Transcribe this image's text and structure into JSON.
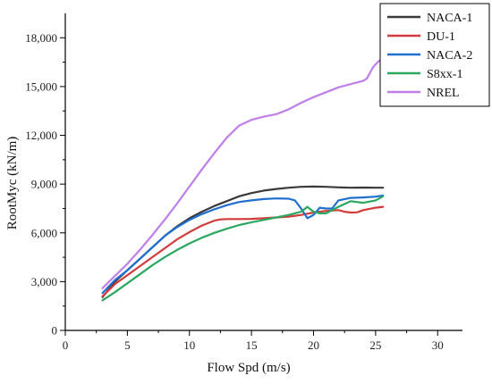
{
  "chart_data": {
    "type": "line",
    "title": "",
    "xlabel": "Flow Spd (m/s)",
    "ylabel": "RootMyc (kN/m)",
    "xlim": [
      0,
      32
    ],
    "ylim": [
      0,
      19500
    ],
    "x_ticks": [
      "0",
      "5",
      "10",
      "15",
      "20",
      "25",
      "30"
    ],
    "y_ticks": [
      "0",
      "3,000",
      "6,000",
      "9,000",
      "12,000",
      "15,000",
      "18,000"
    ],
    "grid": false,
    "legend_position": "top-right",
    "series": [
      {
        "name": "NACA-1",
        "color": "#3a3a3a",
        "points": [
          [
            3,
            2050
          ],
          [
            4,
            3000
          ],
          [
            5,
            3700
          ],
          [
            6,
            4400
          ],
          [
            7,
            5100
          ],
          [
            8,
            5800
          ],
          [
            9,
            6400
          ],
          [
            10,
            6900
          ],
          [
            11,
            7300
          ],
          [
            12,
            7650
          ],
          [
            13,
            7950
          ],
          [
            14,
            8250
          ],
          [
            15,
            8450
          ],
          [
            16,
            8600
          ],
          [
            17,
            8700
          ],
          [
            18,
            8780
          ],
          [
            19,
            8830
          ],
          [
            20,
            8850
          ],
          [
            21,
            8830
          ],
          [
            22,
            8800
          ],
          [
            23,
            8780
          ],
          [
            24,
            8790
          ],
          [
            25,
            8780
          ],
          [
            25.6,
            8780
          ]
        ]
      },
      {
        "name": "DU-1",
        "color": "#d23b3b",
        "points": [
          [
            3,
            2100
          ],
          [
            4,
            2850
          ],
          [
            5,
            3400
          ],
          [
            6,
            3950
          ],
          [
            7,
            4500
          ],
          [
            8,
            5050
          ],
          [
            9,
            5600
          ],
          [
            10,
            6050
          ],
          [
            11,
            6450
          ],
          [
            12,
            6750
          ],
          [
            12.5,
            6830
          ],
          [
            13,
            6850
          ],
          [
            14,
            6850
          ],
          [
            15,
            6860
          ],
          [
            16,
            6900
          ],
          [
            17,
            6950
          ],
          [
            18,
            7000
          ],
          [
            19,
            7100
          ],
          [
            20,
            7250
          ],
          [
            21,
            7350
          ],
          [
            22,
            7400
          ],
          [
            22.5,
            7300
          ],
          [
            23,
            7250
          ],
          [
            23.5,
            7260
          ],
          [
            24,
            7400
          ],
          [
            25,
            7550
          ],
          [
            25.6,
            7600
          ]
        ]
      },
      {
        "name": "NACA-2",
        "color": "#1f6fd1",
        "points": [
          [
            3,
            2300
          ],
          [
            4,
            3100
          ],
          [
            5,
            3700
          ],
          [
            6,
            4400
          ],
          [
            7,
            5100
          ],
          [
            8,
            5800
          ],
          [
            9,
            6350
          ],
          [
            10,
            6800
          ],
          [
            11,
            7150
          ],
          [
            12,
            7450
          ],
          [
            13,
            7700
          ],
          [
            14,
            7900
          ],
          [
            15,
            8000
          ],
          [
            16,
            8080
          ],
          [
            17,
            8120
          ],
          [
            18,
            8100
          ],
          [
            18.5,
            8000
          ],
          [
            19,
            7500
          ],
          [
            19.5,
            6900
          ],
          [
            20,
            7100
          ],
          [
            20.5,
            7550
          ],
          [
            21,
            7500
          ],
          [
            21.5,
            7500
          ],
          [
            22,
            8000
          ],
          [
            23,
            8150
          ],
          [
            24,
            8180
          ],
          [
            25,
            8230
          ],
          [
            25.6,
            8300
          ]
        ]
      },
      {
        "name": "S8xx-1",
        "color": "#2aa860",
        "points": [
          [
            3,
            1850
          ],
          [
            4,
            2350
          ],
          [
            5,
            2900
          ],
          [
            6,
            3450
          ],
          [
            7,
            4000
          ],
          [
            8,
            4500
          ],
          [
            9,
            4950
          ],
          [
            10,
            5350
          ],
          [
            11,
            5700
          ],
          [
            12,
            6000
          ],
          [
            13,
            6250
          ],
          [
            14,
            6480
          ],
          [
            15,
            6650
          ],
          [
            16,
            6800
          ],
          [
            17,
            6950
          ],
          [
            18,
            7100
          ],
          [
            19,
            7300
          ],
          [
            19.5,
            7600
          ],
          [
            20,
            7300
          ],
          [
            20.5,
            7200
          ],
          [
            21,
            7200
          ],
          [
            22,
            7600
          ],
          [
            23,
            7950
          ],
          [
            24,
            7850
          ],
          [
            25,
            8000
          ],
          [
            25.6,
            8250
          ]
        ]
      },
      {
        "name": "NREL",
        "color": "#c07ee8",
        "points": [
          [
            3,
            2600
          ],
          [
            4,
            3350
          ],
          [
            5,
            4100
          ],
          [
            6,
            4950
          ],
          [
            7,
            5850
          ],
          [
            8,
            6800
          ],
          [
            9,
            7800
          ],
          [
            10,
            8850
          ],
          [
            11,
            9900
          ],
          [
            12,
            10900
          ],
          [
            13,
            11850
          ],
          [
            14,
            12600
          ],
          [
            15,
            12950
          ],
          [
            16,
            13150
          ],
          [
            17,
            13300
          ],
          [
            18,
            13600
          ],
          [
            19,
            14000
          ],
          [
            20,
            14350
          ],
          [
            21,
            14650
          ],
          [
            22,
            14950
          ],
          [
            23,
            15150
          ],
          [
            24,
            15350
          ],
          [
            24.3,
            15500
          ],
          [
            24.8,
            16200
          ],
          [
            25.3,
            16600
          ],
          [
            25.6,
            16650
          ]
        ]
      }
    ]
  }
}
